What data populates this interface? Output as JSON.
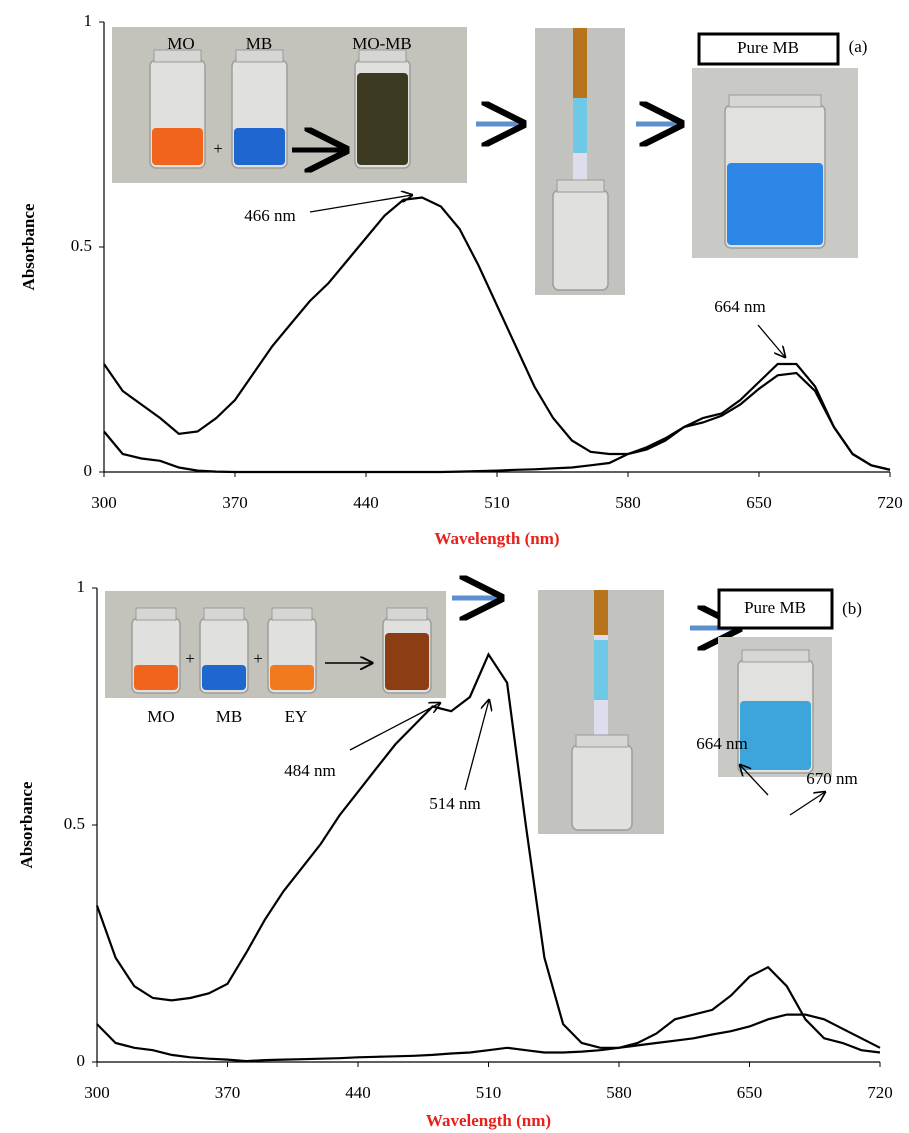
{
  "chart_data": [
    {
      "type": "line",
      "panel_label": "(a)",
      "xlabel": "Wavelength (nm)",
      "xlabel_color": "#e8211b",
      "ylabel": "Absorbance",
      "xlim": [
        300,
        720
      ],
      "ylim": [
        0,
        1
      ],
      "xticks": [
        300,
        370,
        440,
        510,
        580,
        650,
        720
      ],
      "yticks": [
        0,
        0.5,
        1
      ],
      "annotations": [
        "466 nm",
        "664 nm"
      ],
      "inset_labels": [
        "MO",
        "MB",
        "MO-MB",
        "Pure MB"
      ],
      "x": [
        300,
        310,
        320,
        330,
        340,
        350,
        360,
        370,
        380,
        390,
        400,
        410,
        420,
        430,
        440,
        450,
        460,
        470,
        480,
        490,
        500,
        510,
        520,
        530,
        540,
        550,
        560,
        570,
        580,
        590,
        600,
        610,
        620,
        630,
        640,
        650,
        660,
        670,
        680,
        690,
        700,
        710,
        720
      ],
      "series": [
        {
          "color": "#000000",
          "values": [
            0.24,
            0.18,
            0.15,
            0.12,
            0.085,
            0.09,
            0.12,
            0.16,
            0.22,
            0.28,
            0.33,
            0.38,
            0.42,
            0.47,
            0.52,
            0.57,
            0.605,
            0.61,
            0.59,
            0.54,
            0.46,
            0.37,
            0.28,
            0.19,
            0.12,
            0.07,
            0.045,
            0.04,
            0.04,
            0.05,
            0.07,
            0.1,
            0.12,
            0.13,
            0.16,
            0.2,
            0.24,
            0.24,
            0.19,
            0.1,
            0.04,
            0.015,
            0.005
          ]
        },
        {
          "color": "#000000",
          "values": [
            0.09,
            0.04,
            0.03,
            0.025,
            0.01,
            0.003,
            0.001,
            0,
            0,
            0,
            0,
            0,
            0,
            0,
            0,
            0,
            0,
            0,
            0,
            0.001,
            0.002,
            0.003,
            0.005,
            0.006,
            0.008,
            0.01,
            0.015,
            0.02,
            0.04,
            0.055,
            0.075,
            0.1,
            0.11,
            0.125,
            0.15,
            0.185,
            0.215,
            0.22,
            0.18,
            0.1,
            0.04,
            0.015,
            0.005
          ]
        }
      ]
    },
    {
      "type": "line",
      "panel_label": "(b)",
      "xlabel": "Wavelength (nm)",
      "xlabel_color": "#e8211b",
      "ylabel": "Absorbance",
      "xlim": [
        300,
        720
      ],
      "ylim": [
        0,
        1
      ],
      "xticks": [
        300,
        370,
        440,
        510,
        580,
        650,
        720
      ],
      "yticks": [
        0,
        0.5,
        1
      ],
      "annotations": [
        "484 nm",
        "514 nm",
        "664 nm",
        "670 nm"
      ],
      "inset_labels": [
        "MO",
        "MB",
        "EY",
        "Pure MB"
      ],
      "x": [
        300,
        310,
        320,
        330,
        340,
        350,
        360,
        370,
        380,
        390,
        400,
        410,
        420,
        430,
        440,
        450,
        460,
        470,
        480,
        490,
        500,
        510,
        520,
        530,
        540,
        550,
        560,
        570,
        580,
        590,
        600,
        610,
        620,
        630,
        640,
        650,
        660,
        670,
        680,
        690,
        700,
        710,
        720
      ],
      "series": [
        {
          "color": "#000000",
          "values": [
            0.33,
            0.22,
            0.16,
            0.135,
            0.13,
            0.135,
            0.145,
            0.165,
            0.23,
            0.3,
            0.36,
            0.41,
            0.46,
            0.52,
            0.57,
            0.62,
            0.67,
            0.71,
            0.75,
            0.74,
            0.77,
            0.86,
            0.8,
            0.5,
            0.22,
            0.08,
            0.04,
            0.03,
            0.03,
            0.04,
            0.06,
            0.09,
            0.1,
            0.11,
            0.14,
            0.18,
            0.2,
            0.16,
            0.09,
            0.05,
            0.04,
            0.025,
            0.02
          ]
        },
        {
          "color": "#000000",
          "values": [
            0.08,
            0.04,
            0.03,
            0.025,
            0.015,
            0.01,
            0.007,
            0.005,
            0.002,
            0.004,
            0.005,
            0.006,
            0.007,
            0.008,
            0.01,
            0.011,
            0.012,
            0.013,
            0.015,
            0.018,
            0.02,
            0.025,
            0.03,
            0.025,
            0.02,
            0.02,
            0.022,
            0.025,
            0.03,
            0.035,
            0.04,
            0.045,
            0.05,
            0.058,
            0.065,
            0.075,
            0.09,
            0.1,
            0.1,
            0.09,
            0.07,
            0.05,
            0.03
          ]
        }
      ]
    }
  ]
}
